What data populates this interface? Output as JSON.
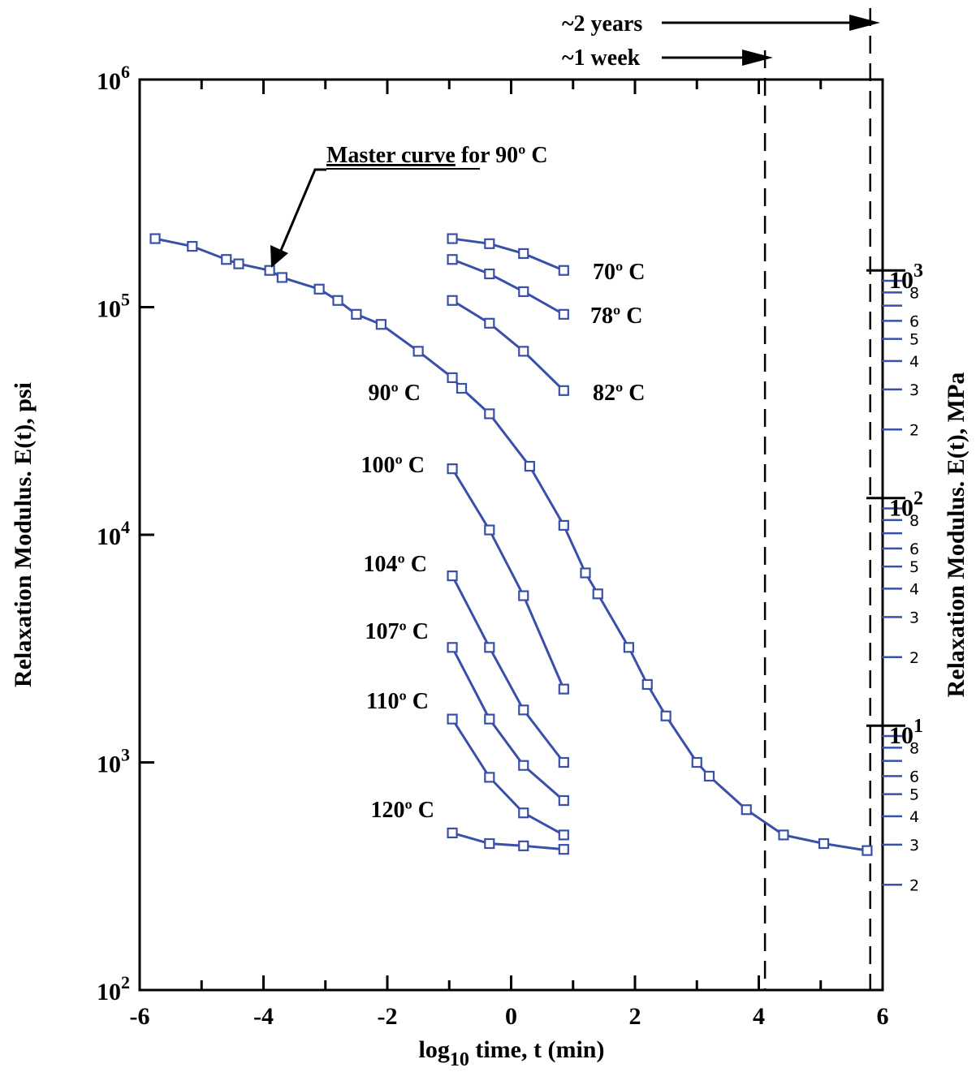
{
  "chart_data": {
    "type": "line",
    "x_axis": {
      "label_prefix": "log",
      "label_subscript": "10",
      "label_suffix": " time, t (min)",
      "range": [
        -6,
        6
      ],
      "tick_labels": [
        "-6",
        "-4",
        "-2",
        "0",
        "2",
        "4",
        "6"
      ]
    },
    "y_axis_left": {
      "label": "Relaxation Modulus. E(t), psi",
      "scale": "log",
      "range": [
        100,
        1000000
      ],
      "tick_labels": [
        {
          "base": "10",
          "exp": "2"
        },
        {
          "base": "10",
          "exp": "3"
        },
        {
          "base": "10",
          "exp": "4"
        },
        {
          "base": "10",
          "exp": "5"
        },
        {
          "base": "10",
          "exp": "6"
        }
      ]
    },
    "y_axis_right": {
      "label": "Relaxation Modulus. E(t), MPa",
      "scale": "log",
      "major_labels": [
        {
          "base": "10",
          "exp": "1",
          "value": 10
        },
        {
          "base": "10",
          "exp": "2",
          "value": 100
        },
        {
          "base": "10",
          "exp": "3",
          "value": 1000
        }
      ],
      "minor_ticks": [
        {
          "value": 2,
          "label": "2"
        },
        {
          "value": 3,
          "label": "3"
        },
        {
          "value": 4,
          "label": "4"
        },
        {
          "value": 5,
          "label": "5"
        },
        {
          "value": 6,
          "label": "6"
        },
        {
          "value": 8,
          "label": "8"
        },
        {
          "value": 20,
          "label": "2"
        },
        {
          "value": 30,
          "label": "3"
        },
        {
          "value": 40,
          "label": "4"
        },
        {
          "value": 50,
          "label": "5"
        },
        {
          "value": 60,
          "label": "6"
        },
        {
          "value": 80,
          "label": "8"
        },
        {
          "value": 200,
          "label": "2"
        },
        {
          "value": 300,
          "label": "3"
        },
        {
          "value": 400,
          "label": "4"
        },
        {
          "value": 500,
          "label": "5"
        },
        {
          "value": 600,
          "label": "6"
        },
        {
          "value": 800,
          "label": "8"
        }
      ],
      "unlabeled_ticks": [
        7,
        9,
        70,
        90,
        700,
        900
      ]
    },
    "series_color": "#3a4fa8",
    "marker": "square",
    "series": [
      {
        "name": "Master curve for 90º C",
        "x": [
          -5.75,
          -5.15,
          -4.6,
          -4.4,
          -3.9,
          -3.7,
          -3.1,
          -2.8,
          -2.5,
          -2.1,
          -1.5,
          -0.95,
          -0.8,
          -0.35,
          0.3,
          0.85,
          1.2,
          1.4,
          1.9,
          2.2,
          2.5,
          3.0,
          3.2,
          3.8,
          4.4,
          5.05,
          5.75
        ],
        "y": [
          200000,
          185000,
          162000,
          155000,
          145000,
          135000,
          120000,
          107000,
          93000,
          84000,
          64000,
          49000,
          44000,
          34000,
          20000,
          11000,
          6800,
          5500,
          3200,
          2200,
          1600,
          1000,
          870,
          620,
          480,
          440,
          410
        ]
      },
      {
        "name": "70º C",
        "x": [
          -0.95,
          -0.35,
          0.2,
          0.85
        ],
        "y": [
          200000,
          190000,
          172000,
          145000
        ]
      },
      {
        "name": "78º C",
        "x": [
          -0.95,
          -0.35,
          0.2,
          0.85
        ],
        "y": [
          162000,
          140000,
          117000,
          93000
        ]
      },
      {
        "name": "82º C",
        "x": [
          -0.95,
          -0.35,
          0.2,
          0.85
        ],
        "y": [
          107000,
          85000,
          64000,
          43000
        ]
      },
      {
        "name": "100º C",
        "x": [
          -0.95,
          -0.35,
          0.2,
          0.85
        ],
        "y": [
          19500,
          10500,
          5400,
          2100
        ]
      },
      {
        "name": "104º C",
        "x": [
          -0.95,
          -0.35,
          0.2,
          0.85
        ],
        "y": [
          6600,
          3200,
          1700,
          1000
        ]
      },
      {
        "name": "107º C",
        "x": [
          -0.95,
          -0.35,
          0.2,
          0.85
        ],
        "y": [
          3200,
          1550,
          970,
          680
        ]
      },
      {
        "name": "110º C",
        "x": [
          -0.95,
          -0.35,
          0.2,
          0.85
        ],
        "y": [
          1550,
          860,
          600,
          480
        ]
      },
      {
        "name": "120º C",
        "x": [
          -0.95,
          -0.35,
          0.2,
          0.85
        ],
        "y": [
          490,
          440,
          430,
          415
        ]
      }
    ],
    "annotations": {
      "master_curve_underlined": "Master curve",
      "master_curve_rest": " for 90º C",
      "two_years": "~2 years",
      "one_week": "~1 week",
      "label_90": "90º C"
    },
    "vertical_lines": [
      {
        "x": 4.1,
        "label": "~1 week"
      },
      {
        "x": 5.8,
        "label": "~2 years"
      }
    ]
  }
}
